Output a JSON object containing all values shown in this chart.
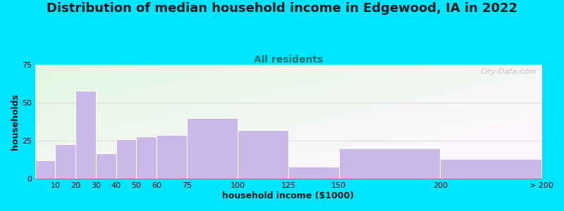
{
  "title": "Distribution of median household income in Edgewood, IA in 2022",
  "subtitle": "All residents",
  "xlabel": "household income ($1000)",
  "ylabel": "households",
  "background_outer": "#00e5ff",
  "bar_color": "#c9b8e8",
  "bar_edge_color": "#ffffff",
  "bin_edges": [
    0,
    10,
    20,
    30,
    40,
    50,
    60,
    75,
    100,
    125,
    150,
    200,
    250
  ],
  "bin_labels": [
    "10",
    "20",
    "30",
    "40",
    "50",
    "60",
    "75",
    "100",
    "125",
    "150",
    "200",
    "> 200"
  ],
  "values": [
    12,
    23,
    58,
    17,
    26,
    28,
    29,
    40,
    32,
    8,
    20,
    13
  ],
  "ylim": [
    0,
    75
  ],
  "yticks": [
    0,
    25,
    50,
    75
  ],
  "title_fontsize": 13,
  "subtitle_fontsize": 10,
  "axis_label_fontsize": 9,
  "tick_fontsize": 8,
  "watermark_text": "City-Data.com",
  "title_color": "#1a1a1a",
  "subtitle_color": "#007070",
  "grid_color": "#dddddd"
}
